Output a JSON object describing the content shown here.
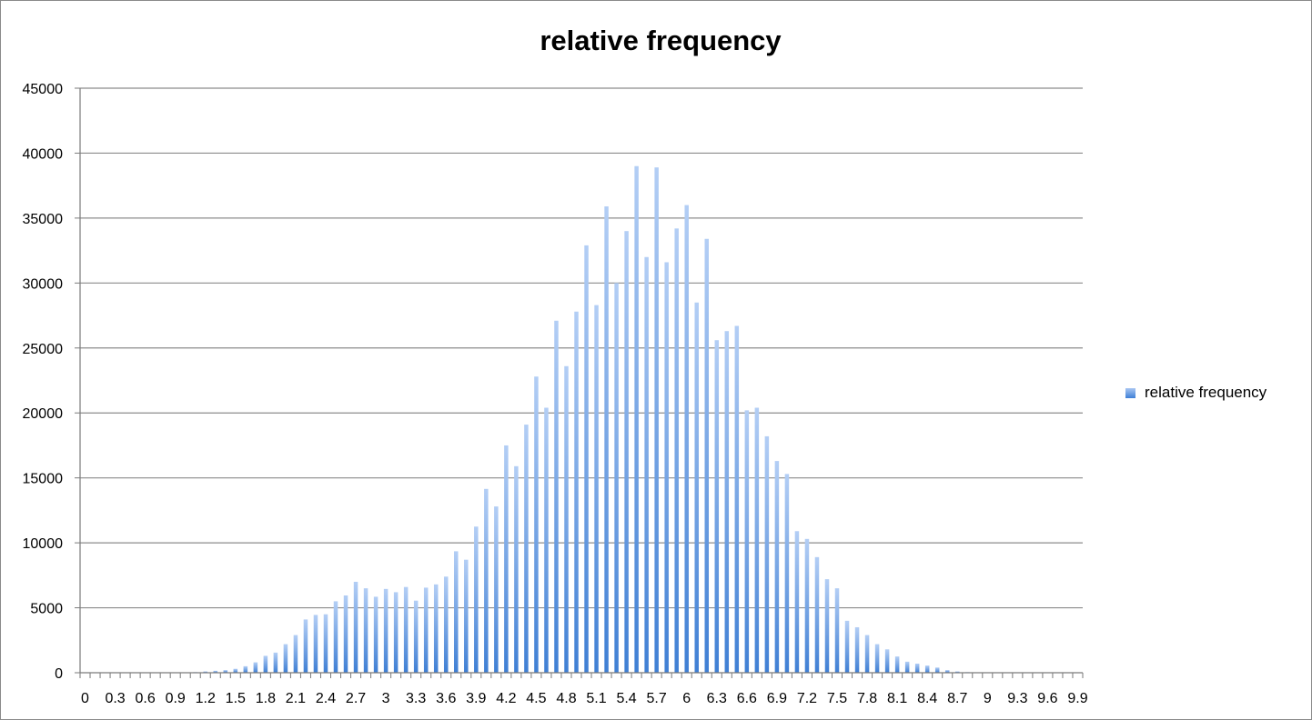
{
  "chart_data": {
    "type": "bar",
    "title": "relative frequency",
    "xlabel": "",
    "ylabel": "",
    "ylim": [
      0,
      45000
    ],
    "yticks": [
      0,
      5000,
      10000,
      15000,
      20000,
      25000,
      30000,
      35000,
      40000,
      45000
    ],
    "grid": true,
    "legend_position": "right",
    "categories": [
      "0",
      "0.1",
      "0.2",
      "0.3",
      "0.4",
      "0.5",
      "0.6",
      "0.7",
      "0.8",
      "0.9",
      "1",
      "1.1",
      "1.2",
      "1.3",
      "1.4",
      "1.5",
      "1.6",
      "1.7",
      "1.8",
      "1.9",
      "2",
      "2.1",
      "2.2",
      "2.3",
      "2.4",
      "2.5",
      "2.6",
      "2.7",
      "2.8",
      "2.9",
      "3",
      "3.1",
      "3.2",
      "3.3",
      "3.4",
      "3.5",
      "3.6",
      "3.7",
      "3.8",
      "3.9",
      "4",
      "4.1",
      "4.2",
      "4.3",
      "4.4",
      "4.5",
      "4.6",
      "4.7",
      "4.8",
      "4.9",
      "5",
      "5.1",
      "5.2",
      "5.3",
      "5.4",
      "5.5",
      "5.6",
      "5.7",
      "5.8",
      "5.9",
      "6",
      "6.1",
      "6.2",
      "6.3",
      "6.4",
      "6.5",
      "6.6",
      "6.7",
      "6.8",
      "6.9",
      "7",
      "7.1",
      "7.2",
      "7.3",
      "7.4",
      "7.5",
      "7.6",
      "7.7",
      "7.8",
      "7.9",
      "8",
      "8.1",
      "8.2",
      "8.3",
      "8.4",
      "8.5",
      "8.6",
      "8.7",
      "8.8",
      "8.9",
      "9",
      "9.1",
      "9.2",
      "9.3",
      "9.4",
      "9.5",
      "9.6",
      "9.7",
      "9.8",
      "9.9"
    ],
    "tick_labels": [
      "0",
      "0.3",
      "0.6",
      "0.9",
      "1.2",
      "1.5",
      "1.8",
      "2.1",
      "2.4",
      "2.7",
      "3",
      "3.3",
      "3.6",
      "3.9",
      "4.2",
      "4.5",
      "4.8",
      "5.1",
      "5.4",
      "5.7",
      "6",
      "6.3",
      "6.6",
      "6.9",
      "7.2",
      "7.5",
      "7.8",
      "8.1",
      "8.4",
      "8.7",
      "9",
      "9.3",
      "9.6",
      "9.9"
    ],
    "series": [
      {
        "name": "relative frequency",
        "color_top": "#b3cef5",
        "color_bottom": "#3f7fd4",
        "values": [
          0,
          0,
          0,
          0,
          0,
          0,
          0,
          0,
          0,
          0,
          0,
          50,
          100,
          150,
          200,
          300,
          500,
          800,
          1300,
          1550,
          2200,
          2900,
          4100,
          4450,
          4500,
          5500,
          5950,
          7000,
          6500,
          5850,
          6450,
          6200,
          6600,
          5550,
          6550,
          6800,
          7400,
          9350,
          8700,
          11250,
          14150,
          12800,
          17500,
          15900,
          19100,
          22800,
          20400,
          27100,
          23600,
          27800,
          32900,
          28300,
          35900,
          30000,
          34000,
          39000,
          32000,
          38900,
          31600,
          34200,
          36000,
          28500,
          33400,
          25600,
          26300,
          26700,
          20200,
          20400,
          18200,
          16300,
          15300,
          10900,
          10300,
          8900,
          7200,
          6500,
          4000,
          3500,
          2900,
          2200,
          1800,
          1250,
          850,
          700,
          550,
          400,
          200,
          100,
          50,
          0,
          0,
          0,
          0,
          0,
          0,
          0,
          0,
          0,
          0,
          0
        ]
      }
    ]
  }
}
